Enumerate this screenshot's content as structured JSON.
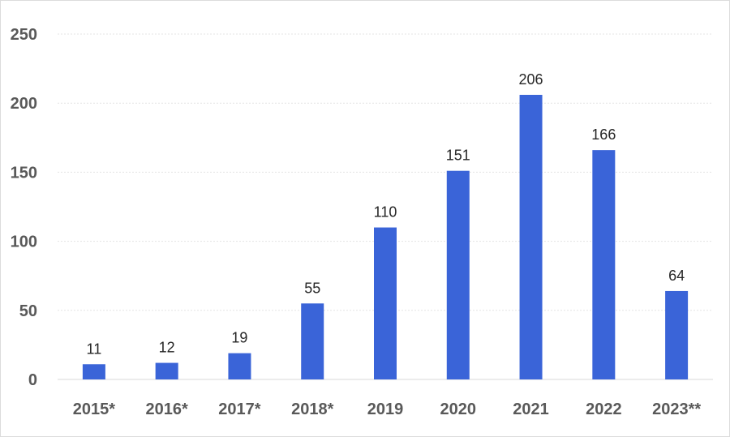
{
  "chart_data": {
    "type": "bar",
    "title": "",
    "xlabel": "",
    "ylabel": "",
    "categories": [
      "2015*",
      "2016*",
      "2017*",
      "2018*",
      "2019",
      "2020",
      "2021",
      "2022",
      "2023**"
    ],
    "values": [
      11,
      12,
      19,
      55,
      110,
      151,
      206,
      166,
      64
    ],
    "data_labels": [
      "11",
      "12",
      "19",
      "55",
      "110",
      "151",
      "206",
      "166",
      "64"
    ],
    "ylim": [
      0,
      250
    ],
    "yticks": [
      "0",
      "50",
      "100",
      "150",
      "200",
      "250"
    ],
    "ytick_values": [
      0,
      50,
      100,
      150,
      200,
      250
    ],
    "grid": true,
    "legend": "none",
    "bar_color": "#3a64d8"
  }
}
